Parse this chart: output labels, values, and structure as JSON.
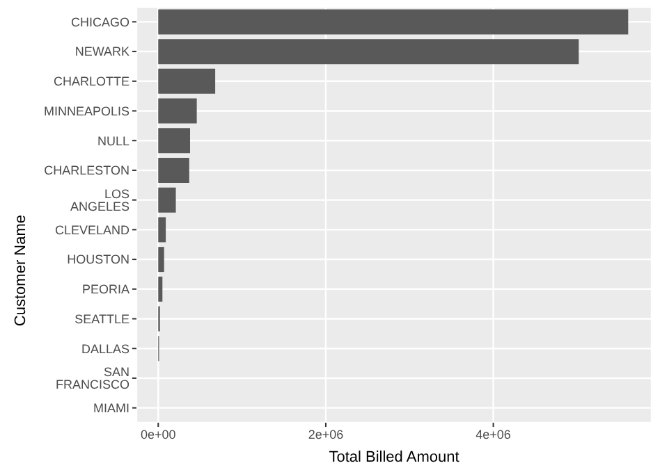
{
  "chart_data": {
    "type": "bar",
    "orientation": "horizontal",
    "xlabel": "Total Billed Amount",
    "ylabel": "Customer Name",
    "categories": [
      "CHICAGO",
      "NEWARK",
      "CHARLOTTE",
      "MINNEAPOLIS",
      "NULL",
      "CHARLESTON",
      "LOS ANGELES",
      "CLEVELAND",
      "HOUSTON",
      "PEORIA",
      "SEATTLE",
      "DALLAS",
      "SAN FRANCISCO",
      "MIAMI"
    ],
    "values": [
      5610000,
      5020000,
      680000,
      460000,
      380000,
      370000,
      210000,
      90000,
      70000,
      50000,
      20000,
      10000,
      0,
      0
    ],
    "color": "#595959",
    "xlim": [
      -260000,
      5890000
    ],
    "xticks": [
      {
        "value": 0,
        "label": "0e+00"
      },
      {
        "value": 2000000,
        "label": "2e+06"
      },
      {
        "value": 4000000,
        "label": "4e+06"
      }
    ],
    "grid": true
  }
}
